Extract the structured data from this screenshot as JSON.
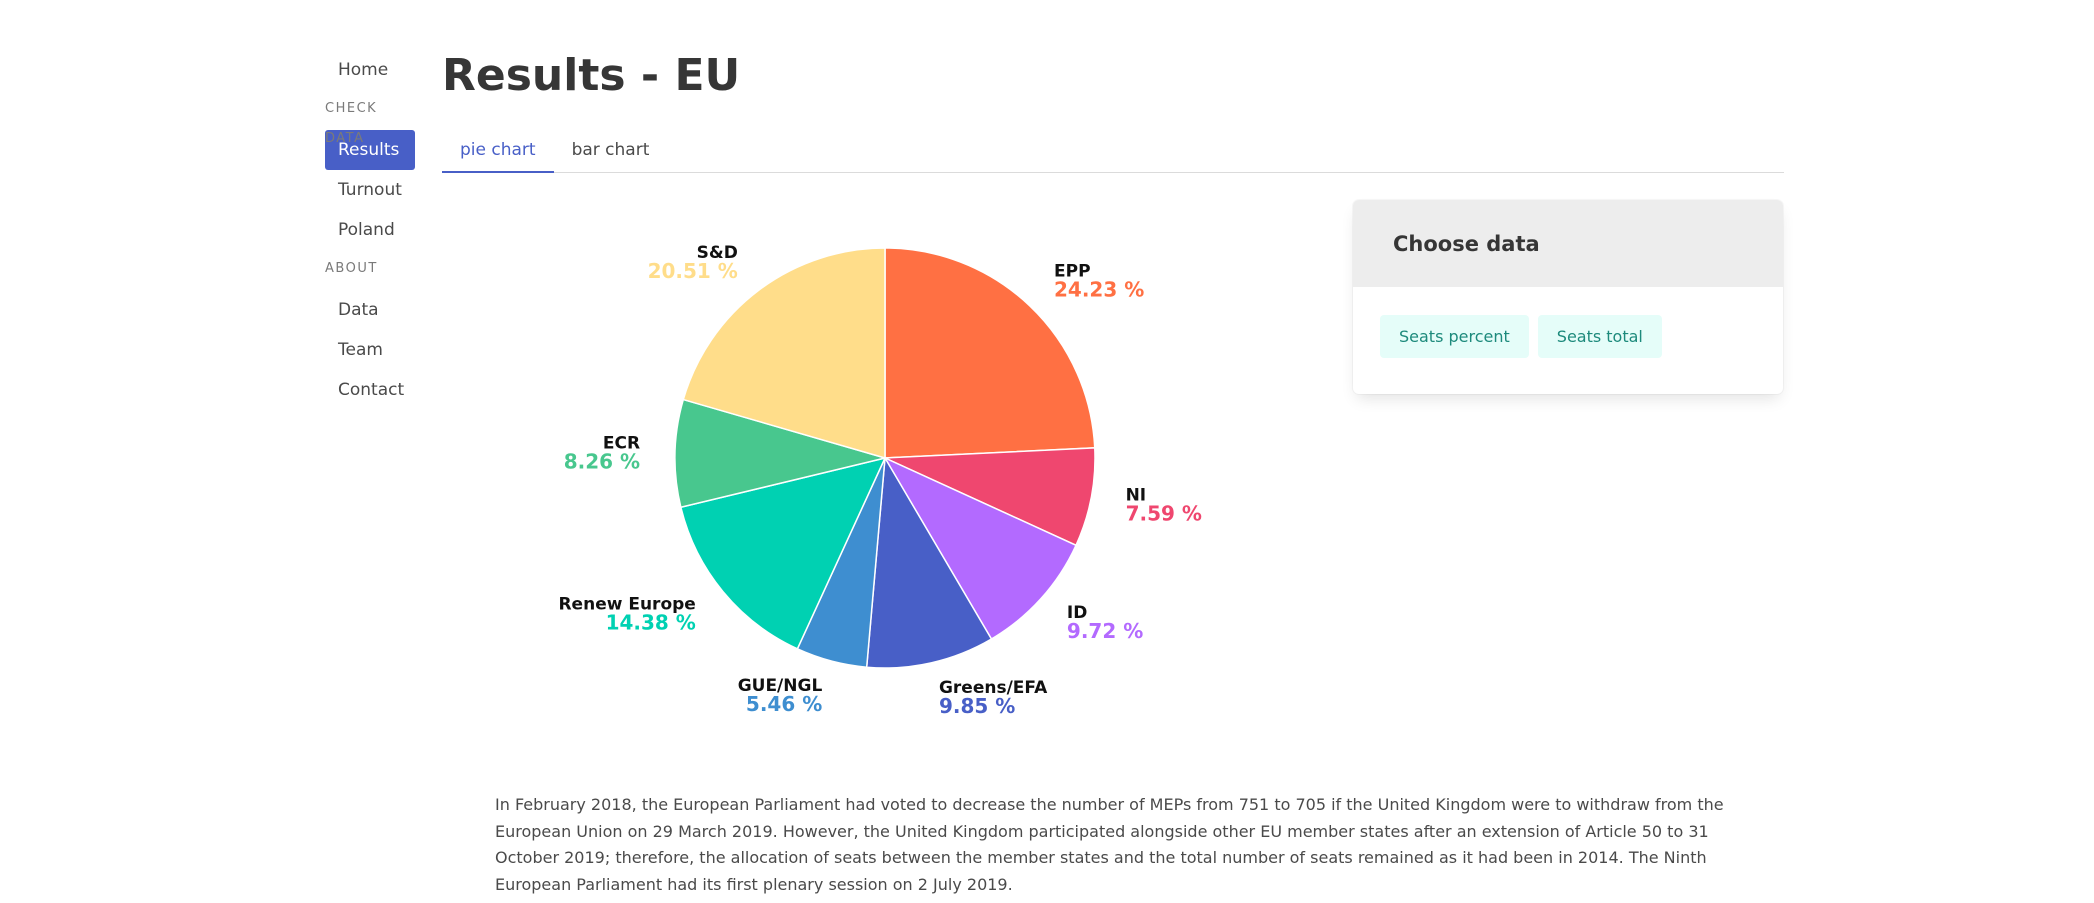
{
  "sidebar": {
    "home": "Home",
    "check_data_label": "CHECK DATA",
    "results": "Results",
    "turnout": "Turnout",
    "poland": "Poland",
    "about_label": "ABOUT",
    "data": "Data",
    "team": "Team",
    "contact": "Contact"
  },
  "page": {
    "title": "Results - EU"
  },
  "tabs": {
    "pie": "pie chart",
    "bar": "bar chart"
  },
  "card": {
    "header": "Choose data",
    "seats_percent": "Seats percent",
    "seats_total": "Seats total"
  },
  "description": "In February 2018, the European Parliament had voted to decrease the number of MEPs from 751 to 705 if the United Kingdom were to withdraw from the European Union on 29 March 2019. However, the United Kingdom participated alongside other EU member states after an extension of Article 50 to 31 October 2019; therefore, the allocation of seats between the member states and the total number of seats remained as it had been in 2014. The Ninth European Parliament had its first plenary session on 2 July 2019.",
  "chart_data": {
    "type": "pie",
    "categories": [
      "EPP",
      "NI",
      "ID",
      "Greens/EFA",
      "GUE/NGL",
      "Renew Europe",
      "ECR",
      "S&D"
    ],
    "values": [
      24.23,
      7.59,
      9.72,
      9.85,
      5.46,
      14.38,
      8.26,
      20.51
    ],
    "value_labels": [
      "24.23 %",
      "7.59 %",
      "9.72 %",
      "9.85 %",
      "5.46 %",
      "14.38 %",
      "8.26 %",
      "20.51 %"
    ],
    "colors": [
      "#ff7043",
      "#ef476f",
      "#b36aff",
      "#485fc7",
      "#3e8ed0",
      "#00d1b2",
      "#48c78e",
      "#ffdd8a"
    ],
    "unit": "%"
  }
}
